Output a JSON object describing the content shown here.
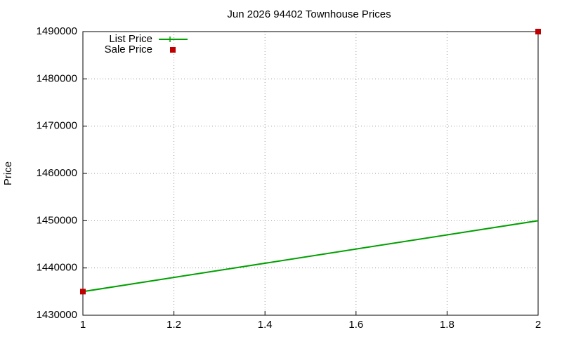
{
  "chart_data": {
    "type": "line",
    "title": "Jun 2026 94402 Townhouse Prices",
    "y_label": "Price",
    "x": [
      1,
      2
    ],
    "series": [
      {
        "name": "List Price",
        "color": "#00a000",
        "mode": "linespoints",
        "values": [
          1435000,
          1450000
        ]
      },
      {
        "name": "Sale Price",
        "color": "#c00000",
        "mode": "points",
        "values": [
          1435000,
          1490000
        ]
      }
    ],
    "xlim": [
      1,
      2
    ],
    "xticks": [
      1,
      1.2,
      1.4,
      1.6,
      1.8,
      2
    ],
    "ylim": [
      1430000,
      1490000
    ],
    "yticks": [
      1430000,
      1440000,
      1450000,
      1460000,
      1470000,
      1480000,
      1490000
    ],
    "grid": true,
    "legend": "top-left"
  }
}
